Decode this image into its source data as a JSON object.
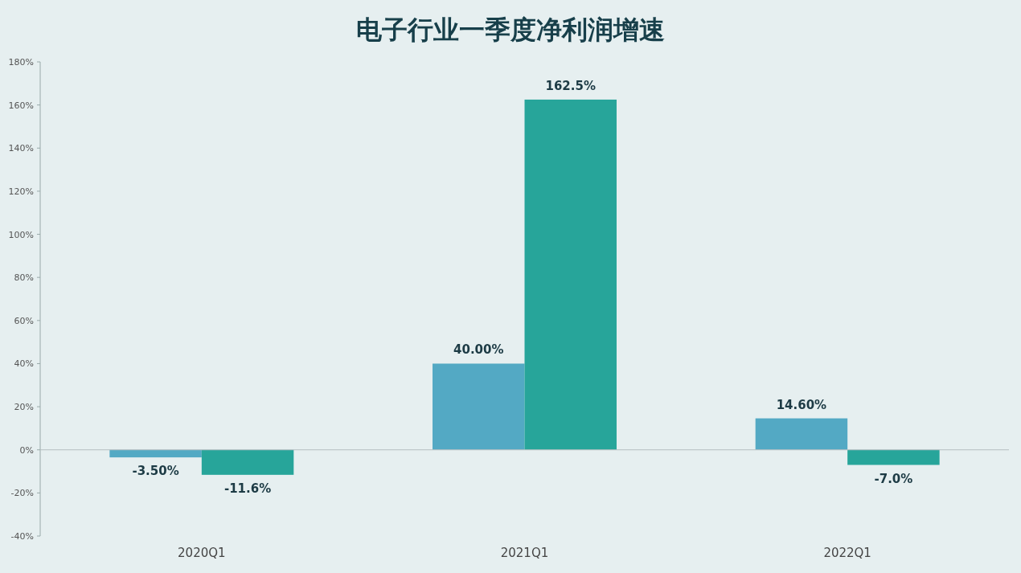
{
  "chart_data": {
    "type": "bar",
    "title": "电子行业一季度净利润增速",
    "categories": [
      "2020Q1",
      "2021Q1",
      "2022Q1"
    ],
    "series": [
      {
        "color": "#53a9c4",
        "values": [
          -3.5,
          40,
          14.6
        ],
        "value_labels": [
          "-3.50%",
          "40.00%",
          "14.60%"
        ]
      },
      {
        "color": "#27a59a",
        "values": [
          -11.6,
          162.5,
          -7.0
        ],
        "value_labels": [
          "-11.6%",
          "162.5%",
          "-7.0%"
        ]
      }
    ],
    "ylim": [
      -40,
      180
    ],
    "yticks": [
      {
        "value": -40,
        "label": "-40%"
      },
      {
        "value": -20,
        "label": "-20%"
      },
      {
        "value": 0,
        "label": "0%"
      },
      {
        "value": 20,
        "label": "20%"
      },
      {
        "value": 40,
        "label": "40%"
      },
      {
        "value": 60,
        "label": "60%"
      },
      {
        "value": 80,
        "label": "80%"
      },
      {
        "value": 100,
        "label": "100%"
      },
      {
        "value": 120,
        "label": "120%"
      },
      {
        "value": 140,
        "label": "140%"
      },
      {
        "value": 160,
        "label": "160%"
      },
      {
        "value": 180,
        "label": "180%"
      }
    ]
  }
}
